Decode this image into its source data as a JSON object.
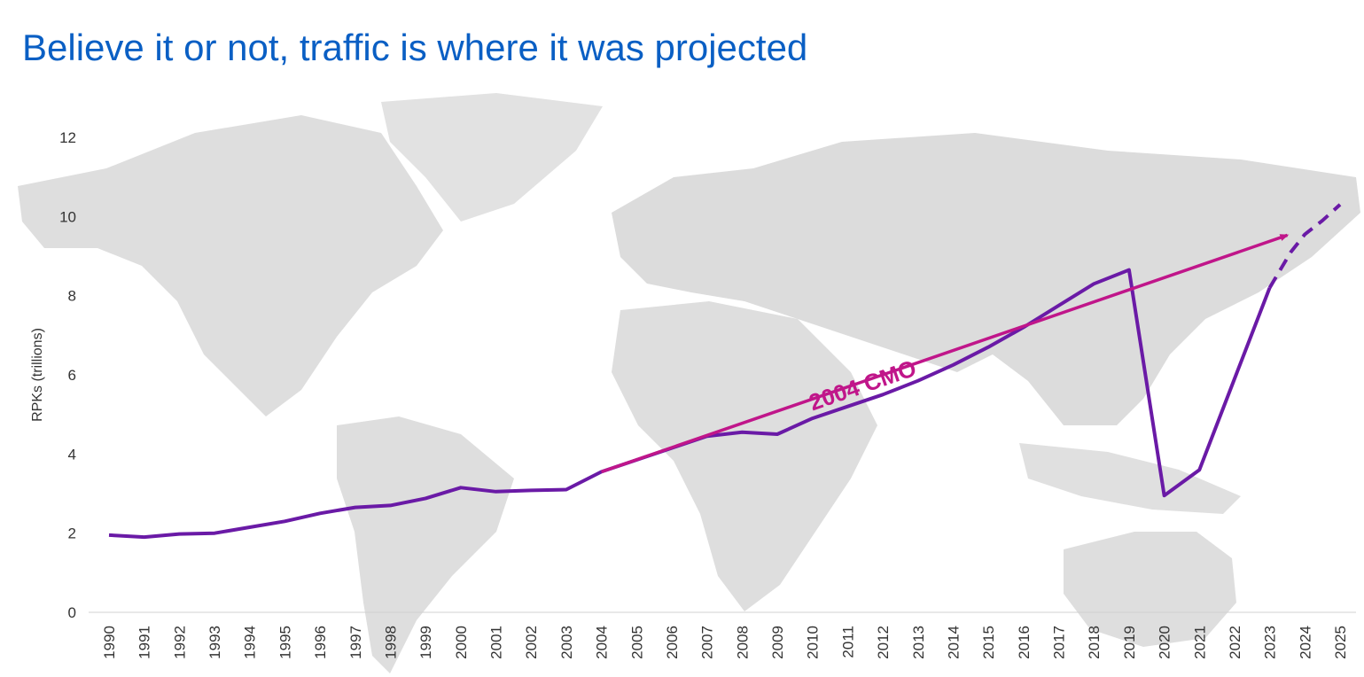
{
  "slide": {
    "title": "Believe it or not, traffic is where it was projected"
  },
  "colors": {
    "title": "#0a5fc4",
    "actual_series": "#6a1aa6",
    "projection": "#c0168a",
    "map": "#d9d9d9"
  },
  "background": {
    "type": "world map",
    "icon": "world-map-icon"
  },
  "chart_data": {
    "type": "line",
    "ylabel": "RPKs (trillions)",
    "xlabel": "",
    "ylim": [
      0,
      12
    ],
    "yticks": [
      0,
      2,
      4,
      6,
      8,
      10,
      12
    ],
    "xticks": [
      "1990",
      "1991",
      "1992",
      "1993",
      "1994",
      "1995",
      "1996",
      "1997",
      "1998",
      "1999",
      "2000",
      "2001",
      "2002",
      "2003",
      "2004",
      "2005",
      "2006",
      "2007",
      "2008",
      "2009",
      "2010",
      "2011",
      "2012",
      "2013",
      "2014",
      "2015",
      "2016",
      "2017",
      "2018",
      "2019",
      "2020",
      "2021",
      "2022",
      "2023",
      "2024",
      "2025"
    ],
    "grid": false,
    "series": [
      {
        "style": "solid",
        "x": [
          1990,
          1991,
          1992,
          1993,
          1994,
          1995,
          1996,
          1997,
          1998,
          1999,
          2000,
          2001,
          2002,
          2003,
          2004,
          2005,
          2006,
          2007,
          2008,
          2009,
          2010,
          2011,
          2012,
          2013,
          2014,
          2015,
          2016,
          2017,
          2018,
          2019,
          2020,
          2021,
          2022,
          2023
        ],
        "y": [
          1.95,
          1.9,
          1.98,
          2.0,
          2.15,
          2.3,
          2.5,
          2.65,
          2.7,
          2.88,
          3.15,
          3.05,
          3.08,
          3.1,
          3.55,
          3.85,
          4.15,
          4.45,
          4.55,
          4.5,
          4.9,
          5.2,
          5.5,
          5.85,
          6.25,
          6.7,
          7.2,
          7.75,
          8.3,
          8.65,
          2.95,
          3.6,
          5.9,
          8.2
        ]
      },
      {
        "style": "dashed",
        "x": [
          2023,
          2023.6,
          2024,
          2024.5,
          2025
        ],
        "y": [
          8.2,
          9.1,
          9.55,
          9.9,
          10.3
        ]
      }
    ],
    "annotations": [
      {
        "label": "2004 CMO",
        "type": "arrow",
        "from": [
          2004,
          3.55
        ],
        "to": [
          2023.6,
          9.55
        ]
      }
    ]
  }
}
